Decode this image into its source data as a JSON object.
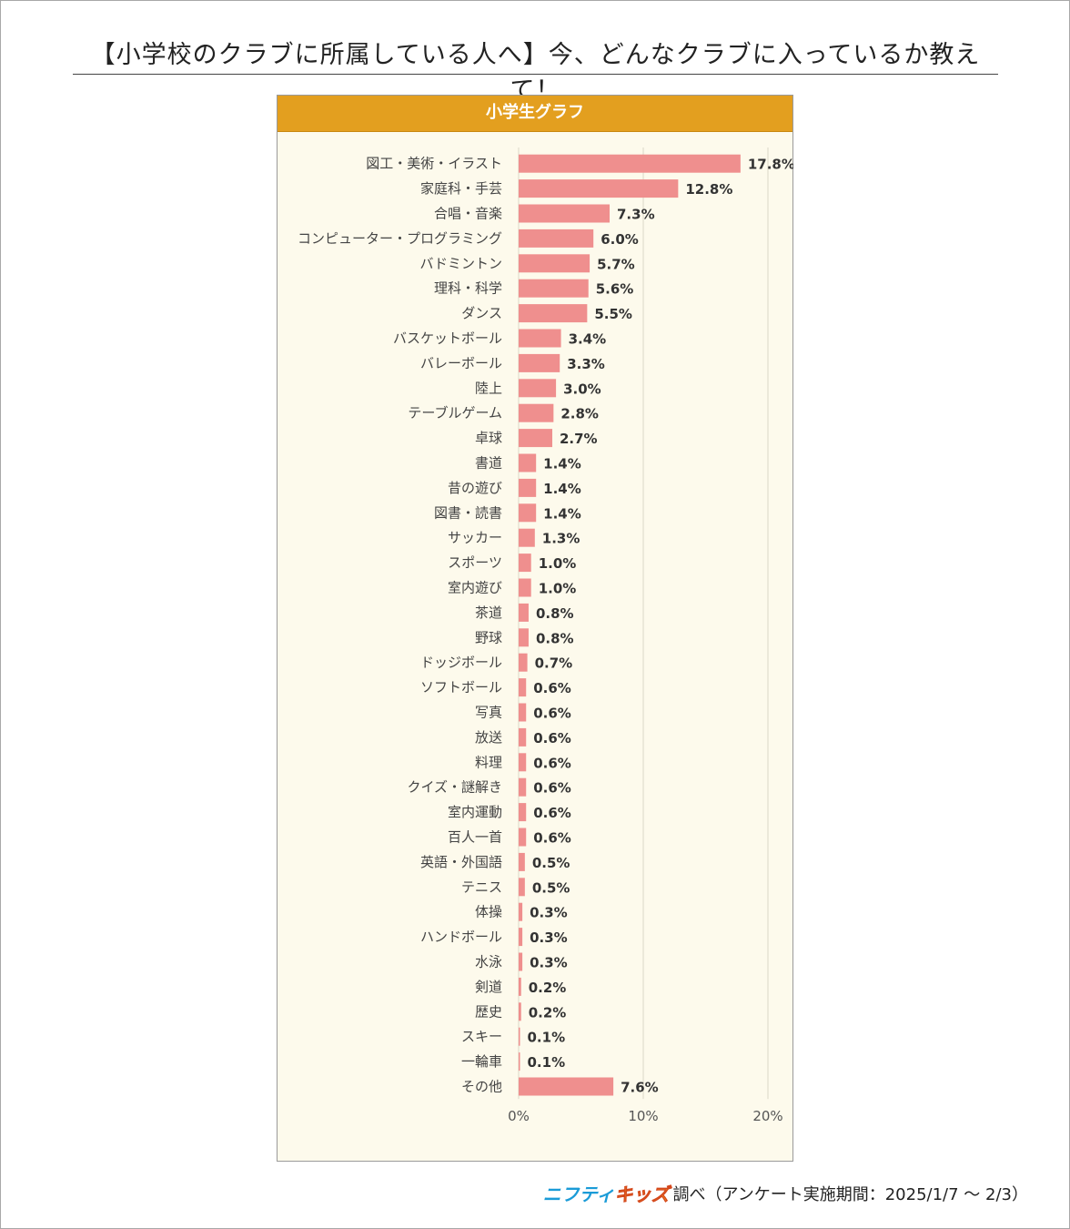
{
  "page_title": "【小学校のクラブに所属している人へ】今、どんなクラブに入っているか教えて！",
  "panel_title": "小学生グラフ",
  "source": {
    "brand_part1": "ニフティ",
    "brand_part2": "キッズ",
    "text": "調べ（アンケート実施期間：2025/1/7 ～ 2/3）"
  },
  "colors": {
    "bar": "#ef8f8e",
    "header": "#e39f1f",
    "panel": "#fdfaec",
    "grid": "#dcd8c8"
  },
  "chart_data": {
    "type": "bar",
    "orientation": "horizontal",
    "categories": [
      "図工・美術・イラスト",
      "家庭科・手芸",
      "合唱・音楽",
      "コンピューター・プログラミング",
      "バドミントン",
      "理科・科学",
      "ダンス",
      "バスケットボール",
      "バレーボール",
      "陸上",
      "テーブルゲーム",
      "卓球",
      "書道",
      "昔の遊び",
      "図書・読書",
      "サッカー",
      "スポーツ",
      "室内遊び",
      "茶道",
      "野球",
      "ドッジボール",
      "ソフトボール",
      "写真",
      "放送",
      "料理",
      "クイズ・謎解き",
      "室内運動",
      "百人一首",
      "英語・外国語",
      "テニス",
      "体操",
      "ハンドボール",
      "水泳",
      "剣道",
      "歴史",
      "スキー",
      "一輪車",
      "その他"
    ],
    "values": [
      17.8,
      12.8,
      7.3,
      6.0,
      5.7,
      5.6,
      5.5,
      3.4,
      3.3,
      3.0,
      2.8,
      2.7,
      1.4,
      1.4,
      1.4,
      1.3,
      1.0,
      1.0,
      0.8,
      0.8,
      0.7,
      0.6,
      0.6,
      0.6,
      0.6,
      0.6,
      0.6,
      0.6,
      0.5,
      0.5,
      0.3,
      0.3,
      0.3,
      0.2,
      0.2,
      0.1,
      0.1,
      7.6
    ],
    "value_labels": [
      "17.8%",
      "12.8%",
      "7.3%",
      "6.0%",
      "5.7%",
      "5.6%",
      "5.5%",
      "3.4%",
      "3.3%",
      "3.0%",
      "2.8%",
      "2.7%",
      "1.4%",
      "1.4%",
      "1.4%",
      "1.3%",
      "1.0%",
      "1.0%",
      "0.8%",
      "0.8%",
      "0.7%",
      "0.6%",
      "0.6%",
      "0.6%",
      "0.6%",
      "0.6%",
      "0.6%",
      "0.6%",
      "0.5%",
      "0.5%",
      "0.3%",
      "0.3%",
      "0.3%",
      "0.2%",
      "0.2%",
      "0.1%",
      "0.1%",
      "7.6%"
    ],
    "x_ticks": [
      "0%",
      "10%",
      "20%"
    ],
    "xlim": [
      0,
      20
    ],
    "grid": true,
    "legend": "none"
  }
}
